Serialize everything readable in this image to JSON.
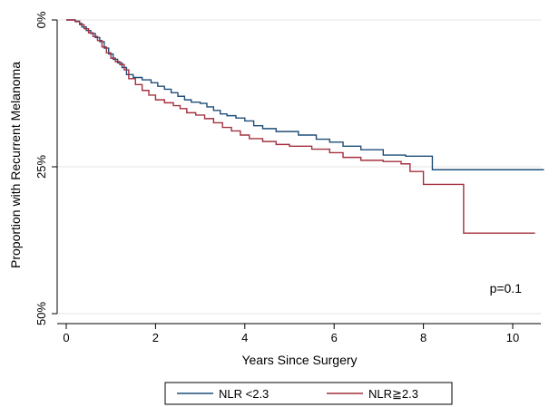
{
  "chart_data": {
    "type": "line",
    "title": "",
    "xlabel": "Years Since Surgery",
    "ylabel": "Proportion with Recurrent Melanoma",
    "xlim": [
      0,
      11
    ],
    "ylim": [
      0,
      50
    ],
    "y_inverted": true,
    "grid": true,
    "x_ticks": [
      {
        "value": 0,
        "label": "0"
      },
      {
        "value": 2,
        "label": "2"
      },
      {
        "value": 4,
        "label": "4"
      },
      {
        "value": 6,
        "label": "6"
      },
      {
        "value": 8,
        "label": "8"
      },
      {
        "value": 10,
        "label": "10"
      }
    ],
    "y_ticks": [
      {
        "value": 0,
        "label": "0%"
      },
      {
        "value": 25,
        "label": "25%"
      },
      {
        "value": 50,
        "label": "50%"
      }
    ],
    "annotation": "p=0.1",
    "legend_position": "bottom",
    "series": [
      {
        "name": "NLR <2.3",
        "color": "#1f4e79",
        "points": [
          [
            0,
            0
          ],
          [
            0.1,
            0
          ],
          [
            0.2,
            0.2
          ],
          [
            0.3,
            0.6
          ],
          [
            0.35,
            1.2
          ],
          [
            0.45,
            1.8
          ],
          [
            0.55,
            2.3
          ],
          [
            0.65,
            3
          ],
          [
            0.75,
            3.7
          ],
          [
            0.85,
            4.8
          ],
          [
            0.95,
            5.8
          ],
          [
            1.05,
            6.7
          ],
          [
            1.15,
            7.3
          ],
          [
            1.25,
            8.1
          ],
          [
            1.35,
            9.3
          ],
          [
            1.5,
            9.8
          ],
          [
            1.7,
            10.2
          ],
          [
            1.9,
            10.7
          ],
          [
            2.05,
            11.3
          ],
          [
            2.2,
            11.8
          ],
          [
            2.35,
            12.4
          ],
          [
            2.5,
            13
          ],
          [
            2.65,
            13.6
          ],
          [
            2.8,
            14
          ],
          [
            3.0,
            14.2
          ],
          [
            3.15,
            14.8
          ],
          [
            3.3,
            15.4
          ],
          [
            3.45,
            16
          ],
          [
            3.6,
            16.3
          ],
          [
            3.8,
            16.7
          ],
          [
            4.0,
            17.2
          ],
          [
            4.2,
            18
          ],
          [
            4.4,
            18.5
          ],
          [
            4.7,
            19
          ],
          [
            5.2,
            19.6
          ],
          [
            5.6,
            20.3
          ],
          [
            5.9,
            20.8
          ],
          [
            6.2,
            21.5
          ],
          [
            6.6,
            22.1
          ],
          [
            7.1,
            23
          ],
          [
            7.6,
            23.2
          ],
          [
            8.2,
            25.5
          ],
          [
            10.7,
            25.5
          ]
        ]
      },
      {
        "name": "NLR≧2.3",
        "color": "#a4303f",
        "points": [
          [
            0,
            0
          ],
          [
            0.1,
            0
          ],
          [
            0.2,
            0.3
          ],
          [
            0.3,
            0.8
          ],
          [
            0.4,
            1.5
          ],
          [
            0.5,
            2.2
          ],
          [
            0.6,
            2.8
          ],
          [
            0.7,
            3.5
          ],
          [
            0.8,
            4.6
          ],
          [
            0.9,
            5.6
          ],
          [
            1.0,
            6.5
          ],
          [
            1.1,
            7.1
          ],
          [
            1.2,
            7.6
          ],
          [
            1.3,
            8.5
          ],
          [
            1.4,
            10
          ],
          [
            1.55,
            11
          ],
          [
            1.7,
            12
          ],
          [
            1.85,
            12.8
          ],
          [
            2.0,
            13.6
          ],
          [
            2.2,
            14.1
          ],
          [
            2.4,
            14.6
          ],
          [
            2.55,
            15.1
          ],
          [
            2.7,
            15.8
          ],
          [
            2.9,
            16.2
          ],
          [
            3.1,
            16.8
          ],
          [
            3.3,
            17.5
          ],
          [
            3.5,
            18.3
          ],
          [
            3.7,
            18.9
          ],
          [
            3.9,
            19.6
          ],
          [
            4.1,
            20.2
          ],
          [
            4.4,
            20.7
          ],
          [
            4.7,
            21.2
          ],
          [
            5.0,
            21.5
          ],
          [
            5.5,
            22
          ],
          [
            5.9,
            22.6
          ],
          [
            6.2,
            23.4
          ],
          [
            6.6,
            23.9
          ],
          [
            7.1,
            24.1
          ],
          [
            7.5,
            24.5
          ],
          [
            7.7,
            25.8
          ],
          [
            8.0,
            28
          ],
          [
            8.9,
            28
          ],
          [
            8.9,
            36.3
          ],
          [
            10.5,
            36.3
          ]
        ]
      }
    ]
  }
}
